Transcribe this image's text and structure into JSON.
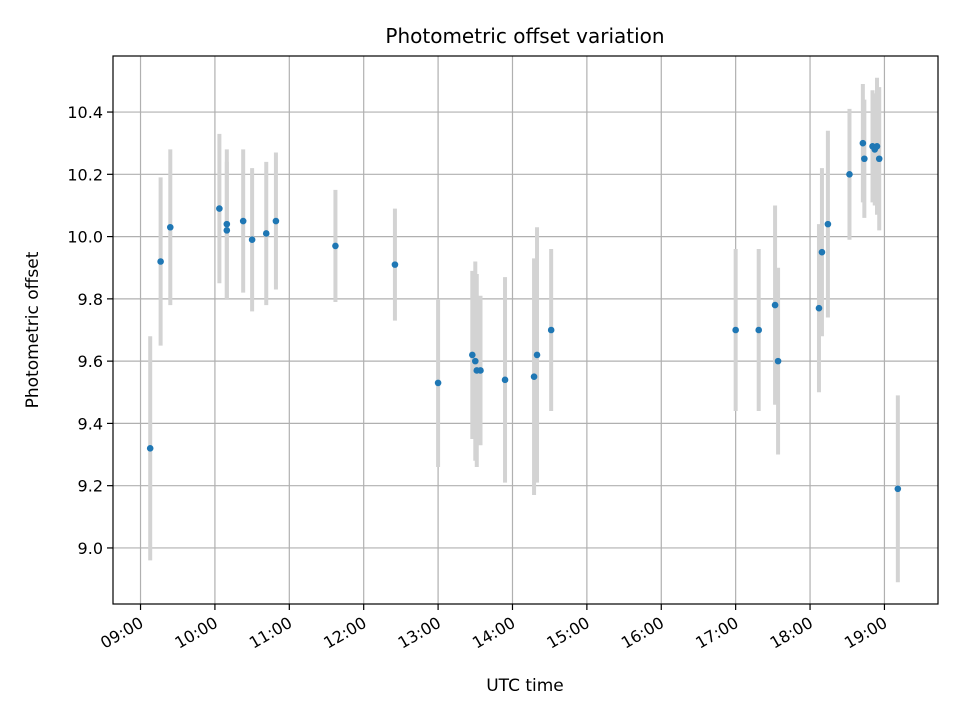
{
  "chart_data": {
    "type": "scatter",
    "title": "Photometric offset variation",
    "xlabel": "UTC time",
    "ylabel": "Photometric offset",
    "x_unit": "hour",
    "xlim": [
      8.63,
      19.72
    ],
    "ylim": [
      8.82,
      10.58
    ],
    "x_ticks": [
      {
        "value": 9,
        "label": "09:00"
      },
      {
        "value": 10,
        "label": "10:00"
      },
      {
        "value": 11,
        "label": "11:00"
      },
      {
        "value": 12,
        "label": "12:00"
      },
      {
        "value": 13,
        "label": "13:00"
      },
      {
        "value": 14,
        "label": "14:00"
      },
      {
        "value": 15,
        "label": "15:00"
      },
      {
        "value": 16,
        "label": "16:00"
      },
      {
        "value": 17,
        "label": "17:00"
      },
      {
        "value": 18,
        "label": "18:00"
      },
      {
        "value": 19,
        "label": "19:00"
      }
    ],
    "y_ticks": [
      {
        "value": 9.0,
        "label": "9.0"
      },
      {
        "value": 9.2,
        "label": "9.2"
      },
      {
        "value": 9.4,
        "label": "9.4"
      },
      {
        "value": 9.6,
        "label": "9.6"
      },
      {
        "value": 9.8,
        "label": "9.8"
      },
      {
        "value": 10.0,
        "label": "10.0"
      },
      {
        "value": 10.2,
        "label": "10.2"
      },
      {
        "value": 10.4,
        "label": "10.4"
      }
    ],
    "grid": true,
    "marker_color": "#1f77b4",
    "errorbar_color": "#d3d3d3",
    "points": [
      {
        "x": 9.13,
        "y": 9.32,
        "yerr": 0.36
      },
      {
        "x": 9.27,
        "y": 9.92,
        "yerr": 0.27
      },
      {
        "x": 9.4,
        "y": 10.03,
        "yerr": 0.25
      },
      {
        "x": 10.06,
        "y": 10.09,
        "yerr": 0.24
      },
      {
        "x": 10.16,
        "y": 10.04,
        "yerr": 0.24
      },
      {
        "x": 10.16,
        "y": 10.02,
        "yerr": 0.22
      },
      {
        "x": 10.38,
        "y": 10.05,
        "yerr": 0.23
      },
      {
        "x": 10.5,
        "y": 9.99,
        "yerr": 0.23
      },
      {
        "x": 10.69,
        "y": 10.01,
        "yerr": 0.23
      },
      {
        "x": 10.82,
        "y": 10.05,
        "yerr": 0.22
      },
      {
        "x": 11.62,
        "y": 9.97,
        "yerr": 0.18
      },
      {
        "x": 12.42,
        "y": 9.91,
        "yerr": 0.18
      },
      {
        "x": 13.0,
        "y": 9.53,
        "yerr": 0.27
      },
      {
        "x": 13.46,
        "y": 9.62,
        "yerr": 0.27
      },
      {
        "x": 13.5,
        "y": 9.6,
        "yerr": 0.32
      },
      {
        "x": 13.52,
        "y": 9.57,
        "yerr": 0.31
      },
      {
        "x": 13.57,
        "y": 9.57,
        "yerr": 0.24
      },
      {
        "x": 13.9,
        "y": 9.54,
        "yerr": 0.33
      },
      {
        "x": 14.29,
        "y": 9.55,
        "yerr": 0.38
      },
      {
        "x": 14.33,
        "y": 9.62,
        "yerr": 0.41
      },
      {
        "x": 14.52,
        "y": 9.7,
        "yerr": 0.26
      },
      {
        "x": 17.0,
        "y": 9.7,
        "yerr": 0.26
      },
      {
        "x": 17.31,
        "y": 9.7,
        "yerr": 0.26
      },
      {
        "x": 17.53,
        "y": 9.78,
        "yerr": 0.32
      },
      {
        "x": 17.57,
        "y": 9.6,
        "yerr": 0.3
      },
      {
        "x": 18.12,
        "y": 9.77,
        "yerr": 0.27
      },
      {
        "x": 18.16,
        "y": 9.95,
        "yerr": 0.27
      },
      {
        "x": 18.24,
        "y": 10.04,
        "yerr": 0.3
      },
      {
        "x": 18.53,
        "y": 10.2,
        "yerr": 0.21
      },
      {
        "x": 18.71,
        "y": 10.3,
        "yerr": 0.19
      },
      {
        "x": 18.73,
        "y": 10.25,
        "yerr": 0.19
      },
      {
        "x": 18.84,
        "y": 10.29,
        "yerr": 0.18
      },
      {
        "x": 18.87,
        "y": 10.28,
        "yerr": 0.18
      },
      {
        "x": 18.9,
        "y": 10.29,
        "yerr": 0.22
      },
      {
        "x": 18.93,
        "y": 10.25,
        "yerr": 0.23
      },
      {
        "x": 19.18,
        "y": 9.19,
        "yerr": 0.3
      }
    ]
  }
}
